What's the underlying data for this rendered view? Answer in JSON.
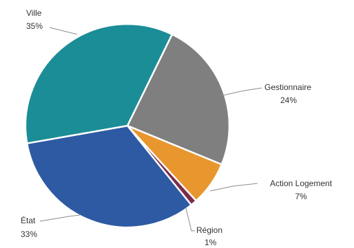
{
  "chart_data": {
    "type": "pie",
    "title": "",
    "slices": [
      {
        "label": "Ville",
        "pct_label": "35%",
        "value": 35,
        "color": "#1b8d96"
      },
      {
        "label": "Gestionnaire",
        "pct_label": "24%",
        "value": 24,
        "color": "#7f7f7f"
      },
      {
        "label": "Action Logement",
        "pct_label": "7%",
        "value": 7,
        "color": "#e8962e"
      },
      {
        "label": "Région",
        "pct_label": "1%",
        "value": 1,
        "color": "#7b2c4f"
      },
      {
        "label": "État",
        "pct_label": "33%",
        "value": 33,
        "color": "#2e5aa3"
      }
    ],
    "legend": "none (labels beside slices with leader lines)"
  }
}
